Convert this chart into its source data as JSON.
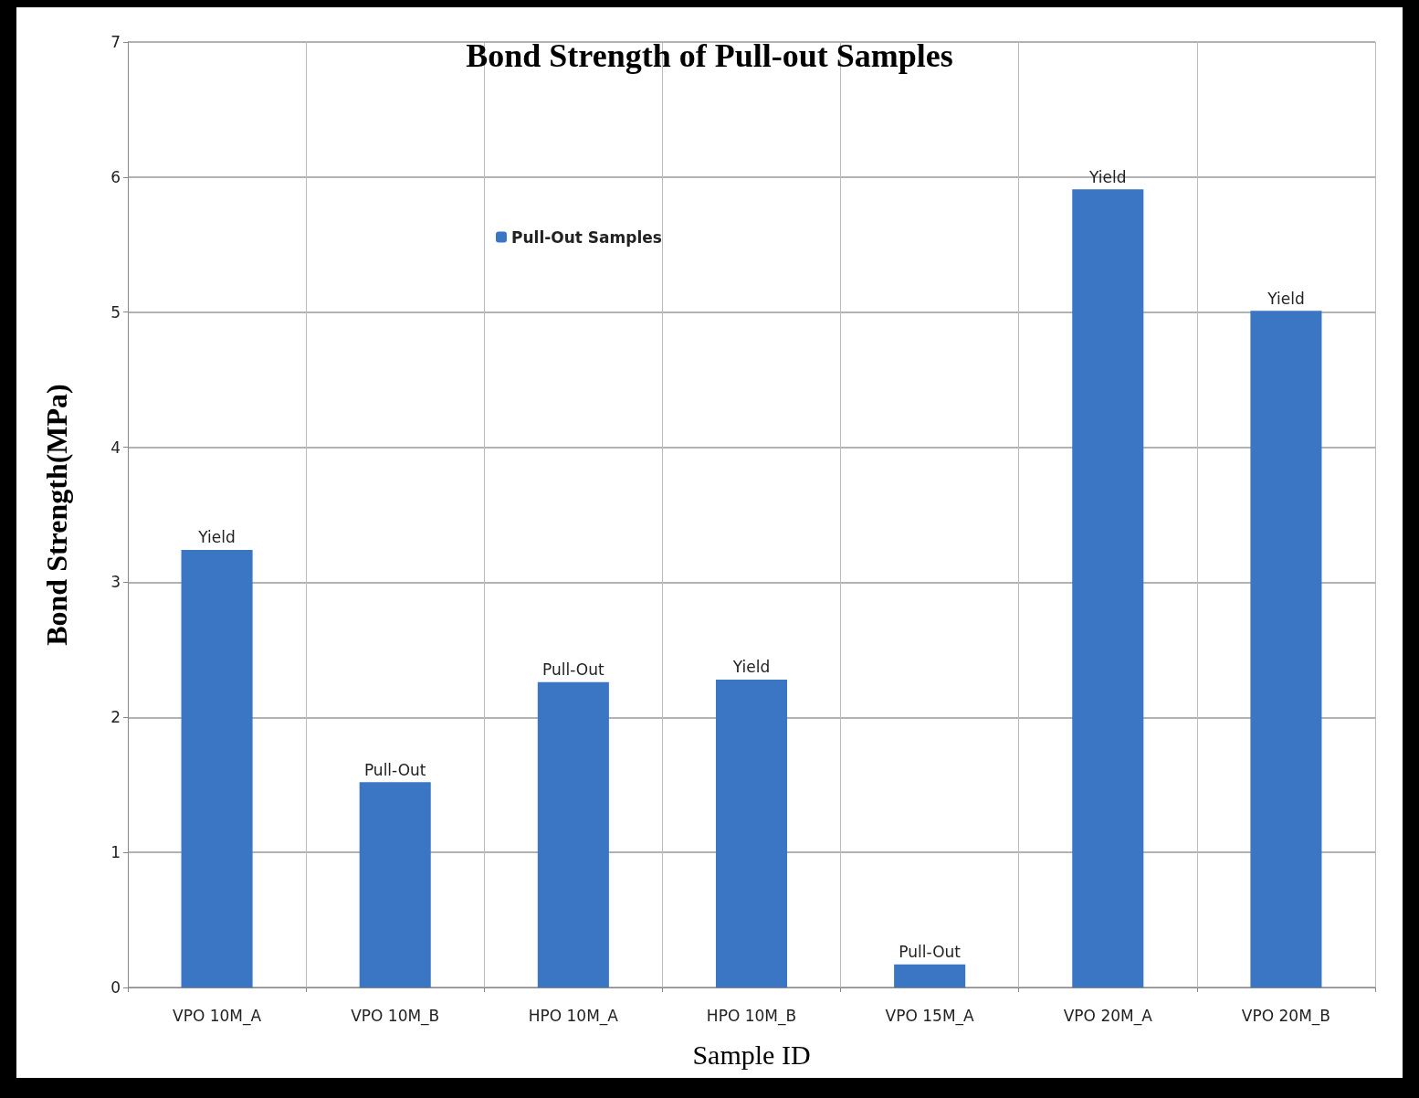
{
  "chart_data": {
    "type": "bar",
    "title": "Bond Strength of Pull-out Samples",
    "xlabel": "Sample ID",
    "ylabel": "Bond Strength(MPa)",
    "categories": [
      "VPO 10M_A",
      "VPO 10M_B",
      "HPO 10M_A",
      "HPO 10M_B",
      "VPO 15M_A",
      "VPO 20M_A",
      "VPO 20M_B"
    ],
    "series": [
      {
        "name": "Pull-Out Samples",
        "color": "#3a76c4",
        "values": [
          3.24,
          1.52,
          2.26,
          2.28,
          0.17,
          5.91,
          5.01
        ],
        "value_labels": [
          "Yield",
          "Pull-Out",
          "Pull-Out",
          "Yield",
          "Pull-Out",
          "Yield",
          "Yield"
        ]
      }
    ],
    "ylim": [
      0,
      7
    ],
    "yticks": [
      0,
      1,
      2,
      3,
      4,
      5,
      6,
      7
    ],
    "grid": true,
    "legend": "top left"
  }
}
